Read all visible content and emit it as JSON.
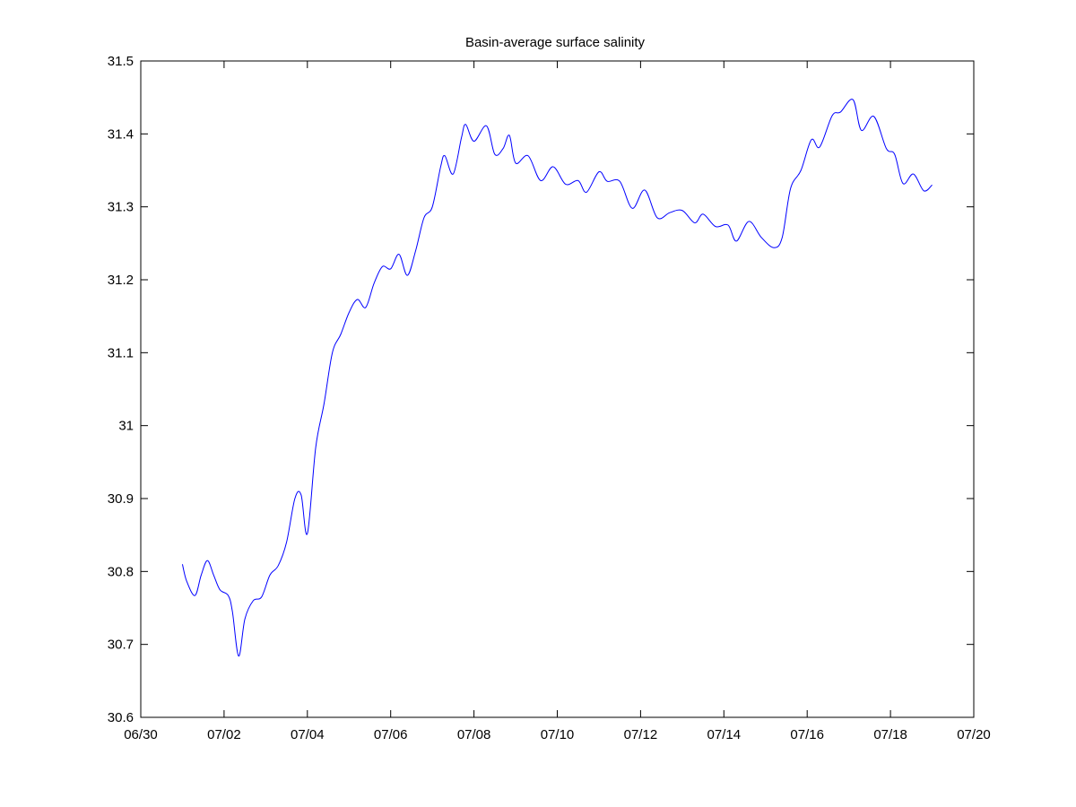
{
  "chart_data": {
    "type": "line",
    "title": "Basin-average surface salinity",
    "xlabel": "",
    "ylabel": "",
    "xlim": [
      0,
      20
    ],
    "ylim": [
      30.6,
      31.5
    ],
    "x_ticks": [
      0,
      2,
      4,
      6,
      8,
      10,
      12,
      14,
      16,
      18,
      20
    ],
    "x_tick_labels": [
      "06/30",
      "07/02",
      "07/04",
      "07/06",
      "07/08",
      "07/10",
      "07/12",
      "07/14",
      "07/16",
      "07/18",
      "07/20"
    ],
    "y_ticks": [
      30.6,
      30.7,
      30.8,
      30.9,
      31.0,
      31.1,
      31.2,
      31.3,
      31.4,
      31.5
    ],
    "y_tick_labels": [
      "30.6",
      "30.7",
      "30.8",
      "30.9",
      "31",
      "31.1",
      "31.2",
      "31.3",
      "31.4",
      "31.5"
    ],
    "grid": false,
    "line_color": "#0000ff",
    "series": [
      {
        "points": [
          [
            1.0,
            30.81
          ],
          [
            1.1,
            30.787
          ],
          [
            1.3,
            30.767
          ],
          [
            1.45,
            30.795
          ],
          [
            1.6,
            30.815
          ],
          [
            1.75,
            30.795
          ],
          [
            1.9,
            30.775
          ],
          [
            2.1,
            30.767
          ],
          [
            2.2,
            30.745
          ],
          [
            2.35,
            30.684
          ],
          [
            2.5,
            30.735
          ],
          [
            2.7,
            30.76
          ],
          [
            2.9,
            30.765
          ],
          [
            3.1,
            30.795
          ],
          [
            3.3,
            30.808
          ],
          [
            3.5,
            30.84
          ],
          [
            3.7,
            30.9
          ],
          [
            3.85,
            30.905
          ],
          [
            4.0,
            30.852
          ],
          [
            4.2,
            30.97
          ],
          [
            4.4,
            31.03
          ],
          [
            4.6,
            31.1
          ],
          [
            4.8,
            31.125
          ],
          [
            5.0,
            31.155
          ],
          [
            5.2,
            31.173
          ],
          [
            5.4,
            31.162
          ],
          [
            5.6,
            31.195
          ],
          [
            5.8,
            31.218
          ],
          [
            6.0,
            31.215
          ],
          [
            6.2,
            31.235
          ],
          [
            6.4,
            31.206
          ],
          [
            6.6,
            31.24
          ],
          [
            6.8,
            31.285
          ],
          [
            7.0,
            31.3
          ],
          [
            7.2,
            31.355
          ],
          [
            7.3,
            31.37
          ],
          [
            7.5,
            31.345
          ],
          [
            7.7,
            31.395
          ],
          [
            7.8,
            31.413
          ],
          [
            8.0,
            31.39
          ],
          [
            8.3,
            31.411
          ],
          [
            8.5,
            31.372
          ],
          [
            8.7,
            31.38
          ],
          [
            8.85,
            31.398
          ],
          [
            9.0,
            31.36
          ],
          [
            9.3,
            31.37
          ],
          [
            9.6,
            31.336
          ],
          [
            9.9,
            31.355
          ],
          [
            10.2,
            31.331
          ],
          [
            10.5,
            31.336
          ],
          [
            10.7,
            31.32
          ],
          [
            11.0,
            31.348
          ],
          [
            11.2,
            31.335
          ],
          [
            11.5,
            31.335
          ],
          [
            11.8,
            31.298
          ],
          [
            12.1,
            31.323
          ],
          [
            12.4,
            31.285
          ],
          [
            12.7,
            31.292
          ],
          [
            13.0,
            31.295
          ],
          [
            13.3,
            31.278
          ],
          [
            13.5,
            31.29
          ],
          [
            13.8,
            31.273
          ],
          [
            14.1,
            31.275
          ],
          [
            14.3,
            31.253
          ],
          [
            14.6,
            31.28
          ],
          [
            14.9,
            31.258
          ],
          [
            15.2,
            31.244
          ],
          [
            15.4,
            31.258
          ],
          [
            15.6,
            31.325
          ],
          [
            15.85,
            31.35
          ],
          [
            16.1,
            31.392
          ],
          [
            16.3,
            31.382
          ],
          [
            16.6,
            31.425
          ],
          [
            16.8,
            31.43
          ],
          [
            17.1,
            31.447
          ],
          [
            17.3,
            31.405
          ],
          [
            17.6,
            31.424
          ],
          [
            17.9,
            31.38
          ],
          [
            18.1,
            31.372
          ],
          [
            18.3,
            31.332
          ],
          [
            18.55,
            31.345
          ],
          [
            18.8,
            31.322
          ],
          [
            19.0,
            31.33
          ]
        ]
      }
    ]
  }
}
